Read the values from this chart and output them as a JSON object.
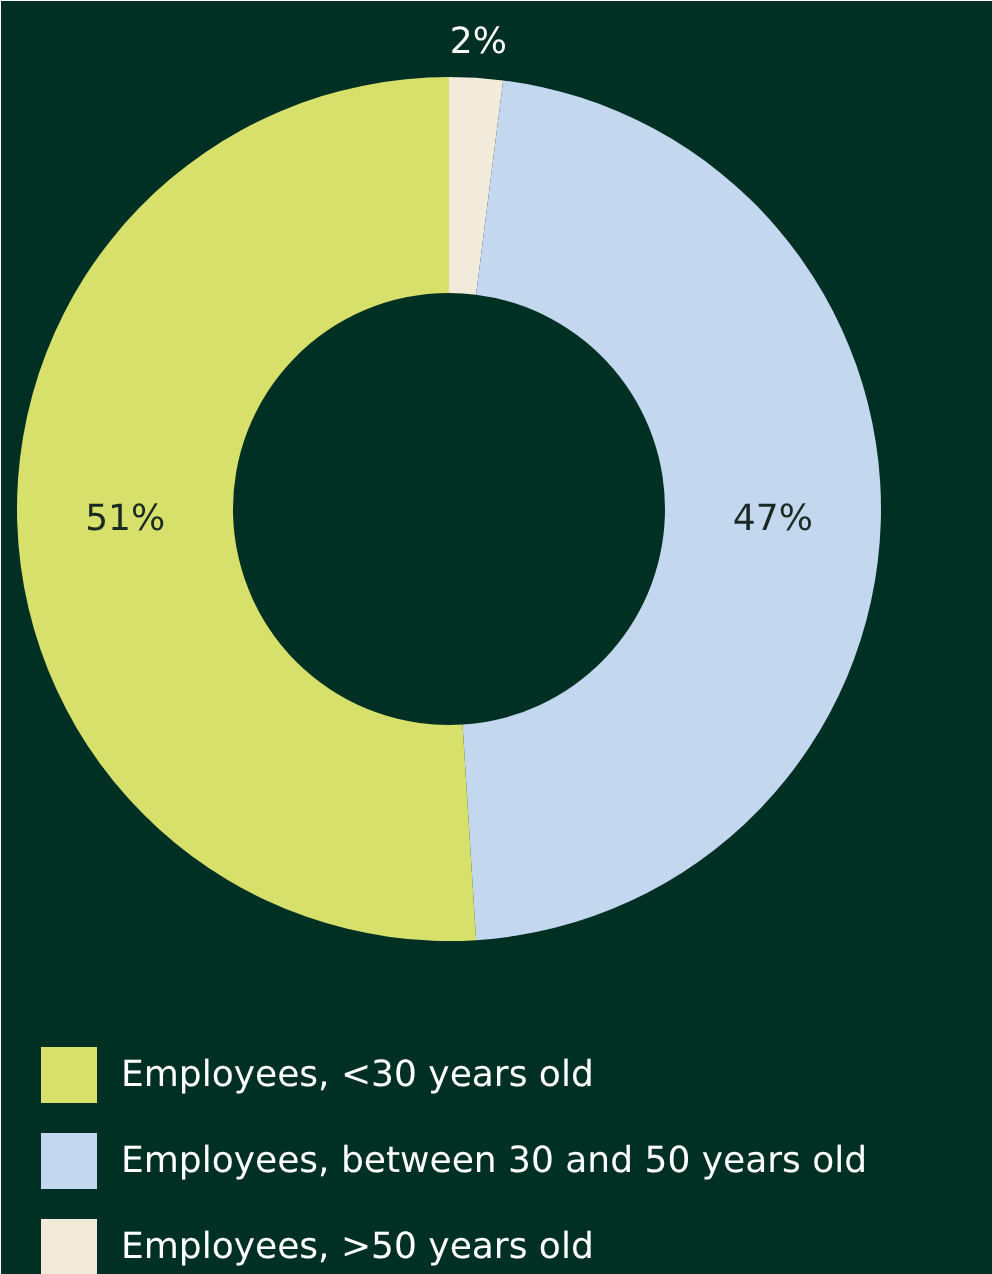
{
  "chart_data": {
    "type": "donut",
    "categories": [
      "Employees, <30 years old",
      "Employees, between 30 and 50 years old",
      "Employees, >50 years old"
    ],
    "values": [
      51,
      47,
      2
    ],
    "colors": [
      "#d7e06b",
      "#c3d7ee",
      "#f2eadb"
    ],
    "value_labels": [
      "51%",
      "47%",
      "2%"
    ],
    "legend": "bottom"
  }
}
